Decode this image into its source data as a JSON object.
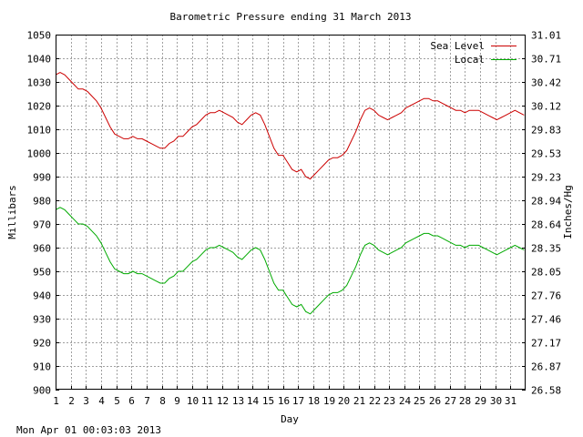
{
  "chart_data": {
    "type": "line",
    "title": "Barometric Pressure ending 31 March 2013",
    "xlabel": "Day",
    "ylabel": "Millibars",
    "ylabel_right": "Inches/Hg",
    "footer": "Mon Apr 01 00:03:03 2013",
    "xlim": [
      1,
      32
    ],
    "ylim": [
      900,
      1050
    ],
    "x_ticks": [
      "1",
      "2",
      "3",
      "4",
      "5",
      "6",
      "7",
      "8",
      "9",
      "10",
      "11",
      "12",
      "13",
      "14",
      "15",
      "16",
      "17",
      "18",
      "19",
      "20",
      "21",
      "22",
      "23",
      "24",
      "25",
      "26",
      "27",
      "28",
      "29",
      "30",
      "31"
    ],
    "y_ticks_left": [
      "900",
      "910",
      "920",
      "930",
      "940",
      "950",
      "960",
      "970",
      "980",
      "990",
      "1000",
      "1010",
      "1020",
      "1030",
      "1040",
      "1050"
    ],
    "y_ticks_right": [
      "26.58",
      "26.87",
      "27.17",
      "27.46",
      "27.76",
      "28.05",
      "28.35",
      "28.64",
      "28.94",
      "29.23",
      "29.53",
      "29.83",
      "30.12",
      "30.42",
      "30.71",
      "31.01"
    ],
    "grid": true,
    "legend_position": "top-right",
    "series": [
      {
        "name": "Sea Level",
        "color": "#cc0000",
        "x": [
          1,
          1.3,
          1.6,
          1.9,
          2.2,
          2.5,
          2.8,
          3.1,
          3.4,
          3.7,
          4,
          4.3,
          4.6,
          4.9,
          5.2,
          5.5,
          5.8,
          6.1,
          6.4,
          6.7,
          7,
          7.3,
          7.6,
          7.9,
          8.2,
          8.5,
          8.8,
          9.1,
          9.4,
          9.7,
          10,
          10.3,
          10.6,
          10.9,
          11.2,
          11.5,
          11.8,
          12.1,
          12.4,
          12.7,
          13,
          13.3,
          13.6,
          13.9,
          14.2,
          14.5,
          14.8,
          15.1,
          15.4,
          15.7,
          16,
          16.3,
          16.6,
          16.9,
          17.2,
          17.5,
          17.8,
          18.1,
          18.4,
          18.7,
          19,
          19.3,
          19.6,
          19.9,
          20.2,
          20.5,
          20.8,
          21.1,
          21.4,
          21.7,
          22,
          22.3,
          22.6,
          22.9,
          23.2,
          23.5,
          23.8,
          24.1,
          24.4,
          24.7,
          25,
          25.3,
          25.6,
          25.9,
          26.2,
          26.5,
          26.8,
          27.1,
          27.4,
          27.7,
          28,
          28.3,
          28.6,
          28.9,
          29.2,
          29.5,
          29.8,
          30.1,
          30.4,
          30.7,
          31,
          31.3,
          31.6,
          31.9
        ],
        "values": [
          1033,
          1034,
          1033,
          1031,
          1029,
          1027,
          1027,
          1026,
          1024,
          1022,
          1019,
          1015,
          1011,
          1008,
          1007,
          1006,
          1006,
          1007,
          1006,
          1006,
          1005,
          1004,
          1003,
          1002,
          1002,
          1004,
          1005,
          1007,
          1007,
          1009,
          1011,
          1012,
          1014,
          1016,
          1017,
          1017,
          1018,
          1017,
          1016,
          1015,
          1013,
          1012,
          1014,
          1016,
          1017,
          1016,
          1012,
          1007,
          1002,
          999,
          999,
          996,
          993,
          992,
          993,
          990,
          989,
          991,
          993,
          995,
          997,
          998,
          998,
          999,
          1001,
          1005,
          1009,
          1014,
          1018,
          1019,
          1018,
          1016,
          1015,
          1014,
          1015,
          1016,
          1017,
          1019,
          1020,
          1021,
          1022,
          1023,
          1023,
          1022,
          1022,
          1021,
          1020,
          1019,
          1018,
          1018,
          1017,
          1018,
          1018,
          1018,
          1017,
          1016,
          1015,
          1014,
          1015,
          1016,
          1017,
          1018,
          1017,
          1016
        ]
      },
      {
        "name": "Local",
        "color": "#00aa00",
        "x": [
          1,
          1.3,
          1.6,
          1.9,
          2.2,
          2.5,
          2.8,
          3.1,
          3.4,
          3.7,
          4,
          4.3,
          4.6,
          4.9,
          5.2,
          5.5,
          5.8,
          6.1,
          6.4,
          6.7,
          7,
          7.3,
          7.6,
          7.9,
          8.2,
          8.5,
          8.8,
          9.1,
          9.4,
          9.7,
          10,
          10.3,
          10.6,
          10.9,
          11.2,
          11.5,
          11.8,
          12.1,
          12.4,
          12.7,
          13,
          13.3,
          13.6,
          13.9,
          14.2,
          14.5,
          14.8,
          15.1,
          15.4,
          15.7,
          16,
          16.3,
          16.6,
          16.9,
          17.2,
          17.5,
          17.8,
          18.1,
          18.4,
          18.7,
          19,
          19.3,
          19.6,
          19.9,
          20.2,
          20.5,
          20.8,
          21.1,
          21.4,
          21.7,
          22,
          22.3,
          22.6,
          22.9,
          23.2,
          23.5,
          23.8,
          24.1,
          24.4,
          24.7,
          25,
          25.3,
          25.6,
          25.9,
          26.2,
          26.5,
          26.8,
          27.1,
          27.4,
          27.7,
          28,
          28.3,
          28.6,
          28.9,
          29.2,
          29.5,
          29.8,
          30.1,
          30.4,
          30.7,
          31,
          31.3,
          31.6,
          31.9
        ],
        "values": [
          976,
          977,
          976,
          974,
          972,
          970,
          970,
          969,
          967,
          965,
          962,
          958,
          954,
          951,
          950,
          949,
          949,
          950,
          949,
          949,
          948,
          947,
          946,
          945,
          945,
          947,
          948,
          950,
          950,
          952,
          954,
          955,
          957,
          959,
          960,
          960,
          961,
          960,
          959,
          958,
          956,
          955,
          957,
          959,
          960,
          959,
          955,
          950,
          945,
          942,
          942,
          939,
          936,
          935,
          936,
          933,
          932,
          934,
          936,
          938,
          940,
          941,
          941,
          942,
          944,
          948,
          952,
          957,
          961,
          962,
          961,
          959,
          958,
          957,
          958,
          959,
          960,
          962,
          963,
          964,
          965,
          966,
          966,
          965,
          965,
          964,
          963,
          962,
          961,
          961,
          960,
          961,
          961,
          961,
          960,
          959,
          958,
          957,
          958,
          959,
          960,
          961,
          960,
          959
        ]
      }
    ]
  }
}
